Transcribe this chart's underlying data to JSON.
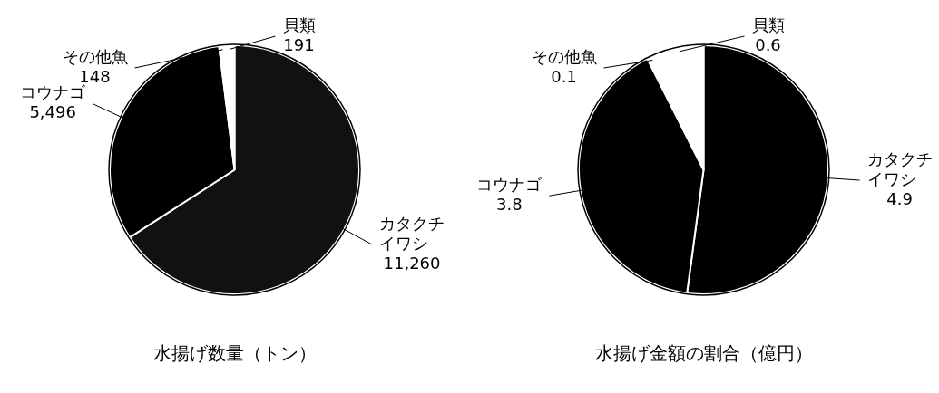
{
  "chart_data": [
    {
      "type": "pie",
      "title": "水揚げ数量（トン）",
      "categories": [
        "カタクチイワシ",
        "コウナゴ",
        "その他魚",
        "貝類"
      ],
      "values": [
        11260,
        5496,
        148,
        191
      ],
      "value_labels": [
        "11,260",
        "5,496",
        "148",
        "191"
      ],
      "colors": [
        "#111111",
        "#000000",
        "#ffffff",
        "#ffffff"
      ],
      "legend": false
    },
    {
      "type": "pie",
      "title": "水揚げ金額の割合（億円）",
      "categories": [
        "カタクチイワシ",
        "コウナゴ",
        "その他魚",
        "貝類"
      ],
      "values": [
        4.9,
        3.8,
        0.1,
        0.6
      ],
      "data_labels": true,
      "colors": [
        "#000000",
        "#000000",
        "#ffffff",
        "#ffffff"
      ],
      "legend": false
    }
  ]
}
